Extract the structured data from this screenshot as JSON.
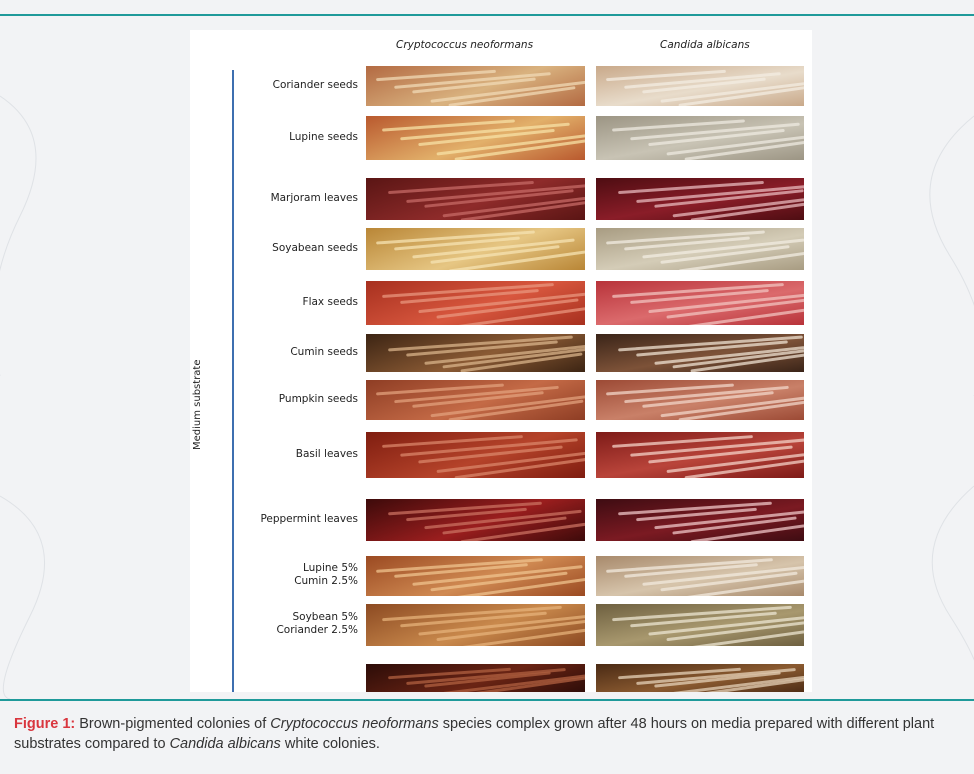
{
  "figure": {
    "column_headers": [
      "Cryptococcus neoformans",
      "Candida albicans"
    ],
    "axis_label": "Medium substrate",
    "rows": [
      {
        "label": [
          "Coriander seeds"
        ],
        "c1": [
          "#b36a42",
          "#d9b27f"
        ],
        "c2": [
          "#c9a98a",
          "#e8dccb"
        ],
        "s1": "#f0d9b5",
        "s2": "#f3ece2"
      },
      {
        "label": [
          "Lupine seeds"
        ],
        "c1": [
          "#b9592e",
          "#e2b06a"
        ],
        "c2": [
          "#9c9584",
          "#c8c3b4"
        ],
        "s1": "#f7e1a6",
        "s2": "#eeeae0"
      },
      {
        "label": [
          "Marjoram  leaves"
        ],
        "c1": [
          "#5a1514",
          "#8e2b2a"
        ],
        "c2": [
          "#4e0d12",
          "#8a1d28"
        ],
        "s1": "#c66a66",
        "s2": "#e8b8bc"
      },
      {
        "label": [
          "Soyabean seeds"
        ],
        "c1": [
          "#b98636",
          "#e6c683"
        ],
        "c2": [
          "#a89c82",
          "#d4ccb7"
        ],
        "s1": "#f6e3b3",
        "s2": "#f1ece1"
      },
      {
        "label": [
          "Flax seeds"
        ],
        "c1": [
          "#a7301f",
          "#d8573e"
        ],
        "c2": [
          "#b8333a",
          "#db6a6c"
        ],
        "s1": "#e8957e",
        "s2": "#f1c3bf"
      },
      {
        "label": [
          "Cumin  seeds"
        ],
        "c1": [
          "#3c2413",
          "#8a5a34"
        ],
        "c2": [
          "#3a2418",
          "#7d5238"
        ],
        "s1": "#d8b38a",
        "s2": "#efe2d2"
      },
      {
        "label": [
          "Pumpkin  seeds"
        ],
        "c1": [
          "#8e3d24",
          "#c46a46"
        ],
        "c2": [
          "#9c4a35",
          "#c98068"
        ],
        "s1": "#e1a07c",
        "s2": "#f1d6c8"
      },
      {
        "label": [
          "Basil leaves"
        ],
        "c1": [
          "#7f1d10",
          "#b5432a"
        ],
        "c2": [
          "#7e1b18",
          "#b9443a"
        ],
        "s1": "#d9866a",
        "s2": "#f4d2c7"
      },
      {
        "label": [
          "Peppermint leaves"
        ],
        "c1": [
          "#3d0a0a",
          "#9a1e1e"
        ],
        "c2": [
          "#3e0c12",
          "#7b1a22"
        ],
        "s1": "#c97060",
        "s2": "#efc5c7"
      },
      {
        "label": [
          "Lupine 5%",
          "Cumin 2.5%"
        ],
        "c1": [
          "#9b4a22",
          "#d08a52"
        ],
        "c2": [
          "#a88a6c",
          "#d6c4ab"
        ],
        "s1": "#efc38e",
        "s2": "#f2e9dd"
      },
      {
        "label": [
          "Soybean 5%",
          "Coriander 2.5%"
        ],
        "c1": [
          "#8c4a22",
          "#c9894c"
        ],
        "c2": [
          "#6e6040",
          "#a8986e"
        ],
        "s1": "#e6b27a",
        "s2": "#ece5d2"
      },
      {
        "label": [
          ""
        ],
        "c1": [
          "#2c0c08",
          "#6a2414"
        ],
        "c2": [
          "#4a2a14",
          "#8a5a30"
        ],
        "s1": "#b06040",
        "s2": "#e6d2b8"
      }
    ]
  },
  "caption": {
    "label": "Figure 1:",
    "text_1": " Brown-pigmented colonies of ",
    "italic_1": "Cryptococcus neoformans",
    "text_2": " species complex grown after 48 hours on media prepared with different plant substrates compared to ",
    "italic_2": "Candida albicans",
    "text_3": " white colonies."
  }
}
